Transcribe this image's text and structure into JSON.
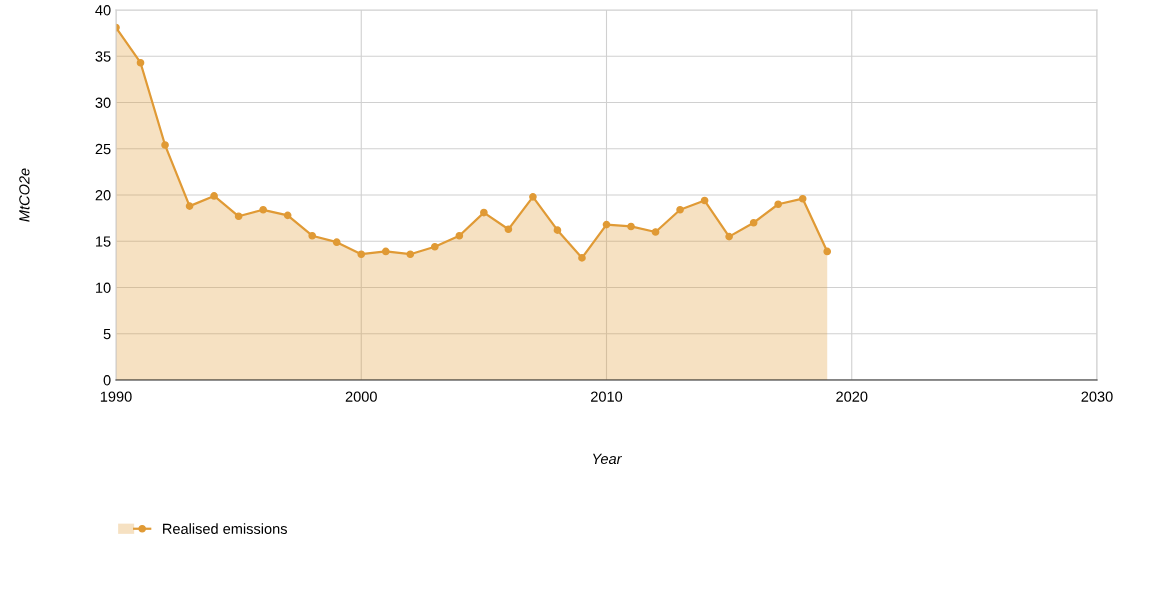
{
  "chart_data": {
    "type": "area",
    "xlabel": "Year",
    "ylabel": "MtCO2e",
    "xlim": [
      1990,
      2030
    ],
    "xticks": [
      1990,
      2000,
      2010,
      2020,
      2030
    ],
    "ylim": [
      0,
      40
    ],
    "yticks": [
      0,
      5,
      10,
      15,
      20,
      25,
      30,
      35,
      40
    ],
    "grid": true,
    "legend": "bottom left",
    "marker": "circle",
    "line_style": "solid",
    "x": [
      1990,
      1991,
      1992,
      1993,
      1994,
      1995,
      1996,
      1997,
      1998,
      1999,
      2000,
      2001,
      2002,
      2003,
      2004,
      2005,
      2006,
      2007,
      2008,
      2009,
      2010,
      2011,
      2012,
      2013,
      2014,
      2015,
      2016,
      2017,
      2018,
      2019
    ],
    "series": [
      {
        "name": "Realised emissions",
        "color": "#e09a35",
        "values": [
          38.1,
          34.3,
          25.4,
          18.8,
          19.9,
          17.7,
          18.4,
          17.8,
          15.6,
          14.9,
          13.6,
          13.9,
          13.6,
          14.4,
          15.6,
          18.1,
          16.3,
          19.8,
          16.2,
          13.2,
          16.8,
          16.6,
          16.0,
          18.4,
          19.4,
          15.5,
          17.0,
          19.0,
          19.6,
          13.9
        ]
      }
    ]
  }
}
